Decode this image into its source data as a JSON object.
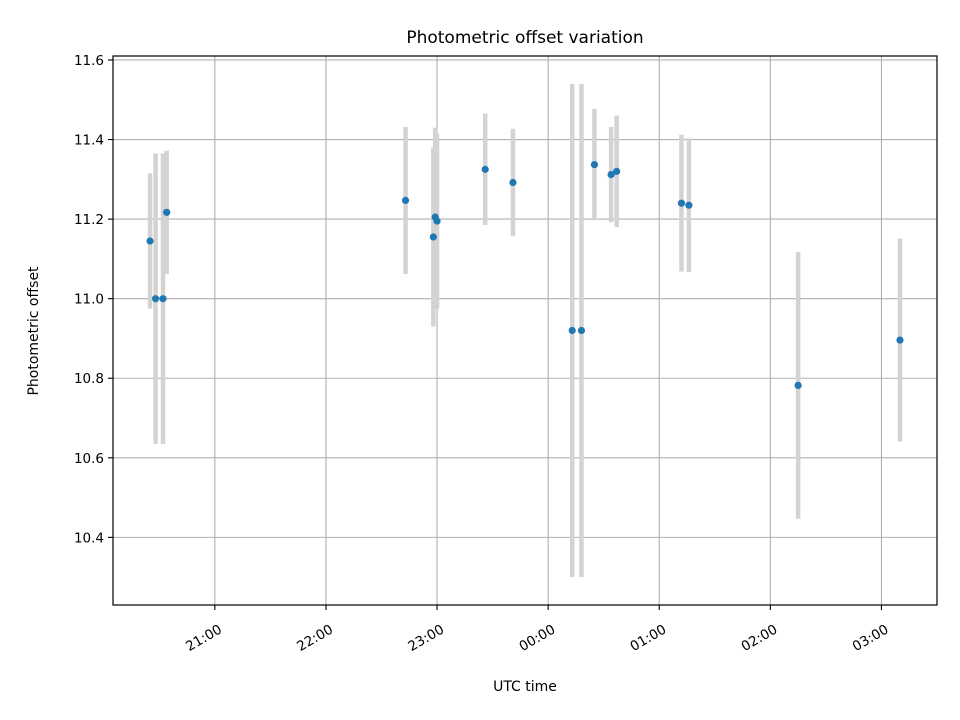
{
  "chart_data": {
    "type": "scatter",
    "title": "Photometric offset variation",
    "xlabel": "UTC time",
    "ylabel": "Photometric offset",
    "x_ticks": [
      "21:00",
      "22:00",
      "23:00",
      "00:00",
      "01:00",
      "02:00",
      "03:00"
    ],
    "y_ticks": [
      "10.4",
      "10.6",
      "10.8",
      "11.0",
      "11.2",
      "11.4",
      "11.6"
    ],
    "xlim": [
      "20:05",
      "03:30"
    ],
    "ylim": [
      10.23,
      11.61
    ],
    "grid": true,
    "series": [
      {
        "marker_color": "#1f77b4",
        "errorbar_color": "#d3d3d3",
        "points": [
          {
            "x": "20:25",
            "y": 11.145,
            "yerr": 0.17
          },
          {
            "x": "20:28",
            "y": 11.0,
            "yerr": 0.365
          },
          {
            "x": "20:32",
            "y": 11.0,
            "yerr": 0.365
          },
          {
            "x": "20:34",
            "y": 11.217,
            "yerr": 0.155
          },
          {
            "x": "22:43",
            "y": 11.247,
            "yerr": 0.185
          },
          {
            "x": "22:58",
            "y": 11.155,
            "yerr": 0.225
          },
          {
            "x": "22:59",
            "y": 11.205,
            "yerr": 0.225
          },
          {
            "x": "23:00",
            "y": 11.195,
            "yerr": 0.22
          },
          {
            "x": "23:26",
            "y": 11.325,
            "yerr": 0.14
          },
          {
            "x": "23:41",
            "y": 11.292,
            "yerr": 0.135
          },
          {
            "x": "00:13",
            "y": 10.92,
            "yerr": 0.62
          },
          {
            "x": "00:18",
            "y": 10.92,
            "yerr": 0.62
          },
          {
            "x": "00:25",
            "y": 11.337,
            "yerr": 0.14
          },
          {
            "x": "00:34",
            "y": 11.312,
            "yerr": 0.12
          },
          {
            "x": "00:37",
            "y": 11.32,
            "yerr": 0.14
          },
          {
            "x": "01:12",
            "y": 11.24,
            "yerr": 0.172
          },
          {
            "x": "01:16",
            "y": 11.235,
            "yerr": 0.168
          },
          {
            "x": "02:15",
            "y": 10.782,
            "yerr": 0.335
          },
          {
            "x": "03:10",
            "y": 10.896,
            "yerr": 0.255
          }
        ]
      }
    ]
  }
}
